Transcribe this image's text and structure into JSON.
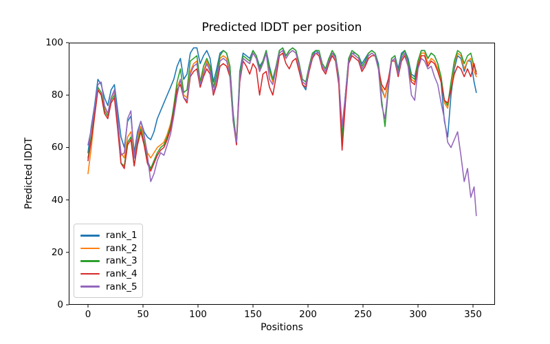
{
  "chart_data": {
    "type": "line",
    "title": "Predicted lDDT per position",
    "xlabel": "Positions",
    "ylabel": "Predicted lDDT",
    "xlim": [
      -17.5,
      370
    ],
    "ylim": [
      0,
      100
    ],
    "x_ticks": [
      0,
      50,
      100,
      150,
      200,
      250,
      300,
      350
    ],
    "y_ticks": [
      0,
      20,
      40,
      60,
      80,
      100
    ],
    "grid": false,
    "legend_position": "lower left",
    "axis_color": "#000000",
    "x": [
      0,
      3,
      6,
      9,
      12,
      15,
      18,
      21,
      24,
      27,
      30,
      33,
      36,
      39,
      42,
      45,
      48,
      51,
      54,
      57,
      60,
      63,
      66,
      69,
      72,
      75,
      78,
      81,
      84,
      87,
      90,
      93,
      96,
      99,
      102,
      105,
      108,
      111,
      114,
      117,
      120,
      123,
      126,
      129,
      132,
      135,
      138,
      141,
      144,
      147,
      150,
      153,
      156,
      159,
      162,
      165,
      168,
      171,
      174,
      177,
      180,
      183,
      186,
      189,
      192,
      195,
      198,
      201,
      204,
      207,
      210,
      213,
      216,
      219,
      222,
      225,
      228,
      231,
      234,
      237,
      240,
      243,
      246,
      249,
      252,
      255,
      258,
      261,
      264,
      267,
      270,
      273,
      276,
      279,
      282,
      285,
      288,
      291,
      294,
      297,
      300,
      303,
      306,
      309,
      312,
      315,
      318,
      321,
      324,
      327,
      330,
      333,
      336,
      339,
      342,
      345,
      348,
      351,
      353
    ],
    "series": [
      {
        "name": "rank_1",
        "color": "#1f77b4",
        "values": [
          58,
          68,
          76,
          86,
          84,
          79,
          76,
          82,
          84,
          74,
          64,
          60,
          70,
          72,
          58,
          66,
          70,
          66,
          64,
          63,
          66,
          71,
          74,
          77,
          80,
          83,
          86,
          91,
          94,
          86,
          88,
          96,
          98,
          98,
          92,
          95,
          97,
          94,
          85,
          90,
          96,
          97,
          96,
          91,
          73,
          62,
          89,
          96,
          95,
          94,
          97,
          95,
          91,
          93,
          97,
          91,
          86,
          91,
          97,
          98,
          95,
          97,
          98,
          97,
          92,
          84,
          82,
          90,
          95,
          97,
          96,
          92,
          90,
          94,
          96,
          95,
          87,
          64,
          80,
          94,
          96,
          96,
          95,
          92,
          94,
          96,
          97,
          96,
          92,
          82,
          79,
          85,
          94,
          95,
          90,
          96,
          97,
          94,
          88,
          87,
          93,
          97,
          97,
          94,
          96,
          95,
          92,
          85,
          70,
          64,
          80,
          90,
          95,
          94,
          89,
          93,
          93,
          85,
          81
        ]
      },
      {
        "name": "rank_2",
        "color": "#ff7f0e",
        "values": [
          50,
          60,
          72,
          82,
          80,
          75,
          73,
          79,
          81,
          70,
          58,
          56,
          64,
          66,
          56,
          64,
          68,
          64,
          58,
          56,
          58,
          60,
          61,
          62,
          65,
          69,
          75,
          83,
          86,
          80,
          79,
          89,
          92,
          93,
          85,
          89,
          93,
          90,
          83,
          87,
          94,
          95,
          94,
          89,
          71,
          63,
          87,
          94,
          93,
          92,
          96,
          94,
          89,
          92,
          96,
          89,
          85,
          90,
          96,
          97,
          94,
          96,
          97,
          96,
          91,
          85,
          84,
          90,
          95,
          96,
          96,
          91,
          89,
          93,
          96,
          94,
          86,
          62,
          79,
          93,
          96,
          95,
          94,
          90,
          92,
          95,
          96,
          95,
          91,
          83,
          79,
          85,
          93,
          94,
          88,
          94,
          96,
          92,
          86,
          85,
          92,
          96,
          96,
          92,
          94,
          93,
          90,
          86,
          77,
          75,
          83,
          92,
          96,
          95,
          90,
          93,
          94,
          89,
          87
        ]
      },
      {
        "name": "rank_3",
        "color": "#2ca02c",
        "values": [
          56,
          64,
          73,
          83,
          81,
          74,
          72,
          78,
          80,
          68,
          54,
          53,
          62,
          64,
          53,
          62,
          67,
          62,
          55,
          52,
          55,
          58,
          60,
          61,
          64,
          68,
          76,
          85,
          90,
          81,
          82,
          93,
          94,
          95,
          85,
          91,
          94,
          91,
          83,
          88,
          95,
          97,
          96,
          91,
          72,
          62,
          88,
          95,
          94,
          93,
          97,
          95,
          90,
          93,
          97,
          90,
          86,
          91,
          97,
          98,
          95,
          97,
          98,
          97,
          92,
          86,
          85,
          91,
          96,
          97,
          97,
          92,
          90,
          94,
          97,
          95,
          87,
          63,
          80,
          94,
          97,
          96,
          95,
          91,
          93,
          96,
          97,
          96,
          91,
          78,
          68,
          82,
          94,
          95,
          89,
          95,
          97,
          93,
          87,
          86,
          93,
          97,
          97,
          94,
          96,
          95,
          92,
          87,
          78,
          76,
          85,
          93,
          97,
          96,
          92,
          95,
          96,
          91,
          89
        ]
      },
      {
        "name": "rank_4",
        "color": "#d62728",
        "values": [
          55,
          63,
          72,
          82,
          80,
          73,
          71,
          77,
          79,
          67,
          54,
          52,
          61,
          63,
          53,
          61,
          66,
          61,
          54,
          51,
          54,
          57,
          59,
          60,
          63,
          67,
          74,
          82,
          84,
          79,
          77,
          87,
          89,
          90,
          83,
          87,
          90,
          88,
          80,
          84,
          91,
          92,
          91,
          87,
          70,
          61,
          85,
          93,
          91,
          88,
          92,
          90,
          80,
          88,
          89,
          83,
          80,
          87,
          95,
          96,
          92,
          90,
          93,
          94,
          89,
          84,
          83,
          89,
          94,
          96,
          95,
          90,
          88,
          92,
          95,
          93,
          84,
          59,
          77,
          92,
          95,
          94,
          93,
          89,
          91,
          94,
          95,
          95,
          90,
          84,
          82,
          86,
          93,
          93,
          87,
          93,
          95,
          91,
          85,
          84,
          91,
          95,
          95,
          91,
          93,
          92,
          89,
          85,
          78,
          77,
          82,
          88,
          91,
          90,
          87,
          90,
          87,
          92,
          88
        ]
      },
      {
        "name": "rank_5",
        "color": "#9467bd",
        "values": [
          61,
          67,
          75,
          84,
          85,
          76,
          73,
          79,
          82,
          71,
          57,
          58,
          71,
          74,
          56,
          65,
          70,
          65,
          57,
          47,
          50,
          55,
          58,
          57,
          61,
          65,
          72,
          80,
          86,
          79,
          78,
          88,
          91,
          92,
          84,
          88,
          92,
          89,
          81,
          86,
          93,
          94,
          93,
          88,
          70,
          62,
          86,
          94,
          93,
          92,
          96,
          94,
          89,
          92,
          96,
          86,
          84,
          90,
          96,
          97,
          94,
          96,
          97,
          96,
          91,
          85,
          84,
          90,
          95,
          96,
          96,
          91,
          89,
          93,
          96,
          94,
          86,
          68,
          80,
          93,
          96,
          95,
          94,
          90,
          92,
          95,
          96,
          95,
          90,
          76,
          71,
          83,
          93,
          94,
          88,
          94,
          96,
          91,
          80,
          78,
          90,
          94,
          93,
          90,
          91,
          87,
          84,
          77,
          71,
          62,
          60,
          63,
          66,
          57,
          47,
          52,
          41,
          45,
          34
        ]
      }
    ]
  }
}
